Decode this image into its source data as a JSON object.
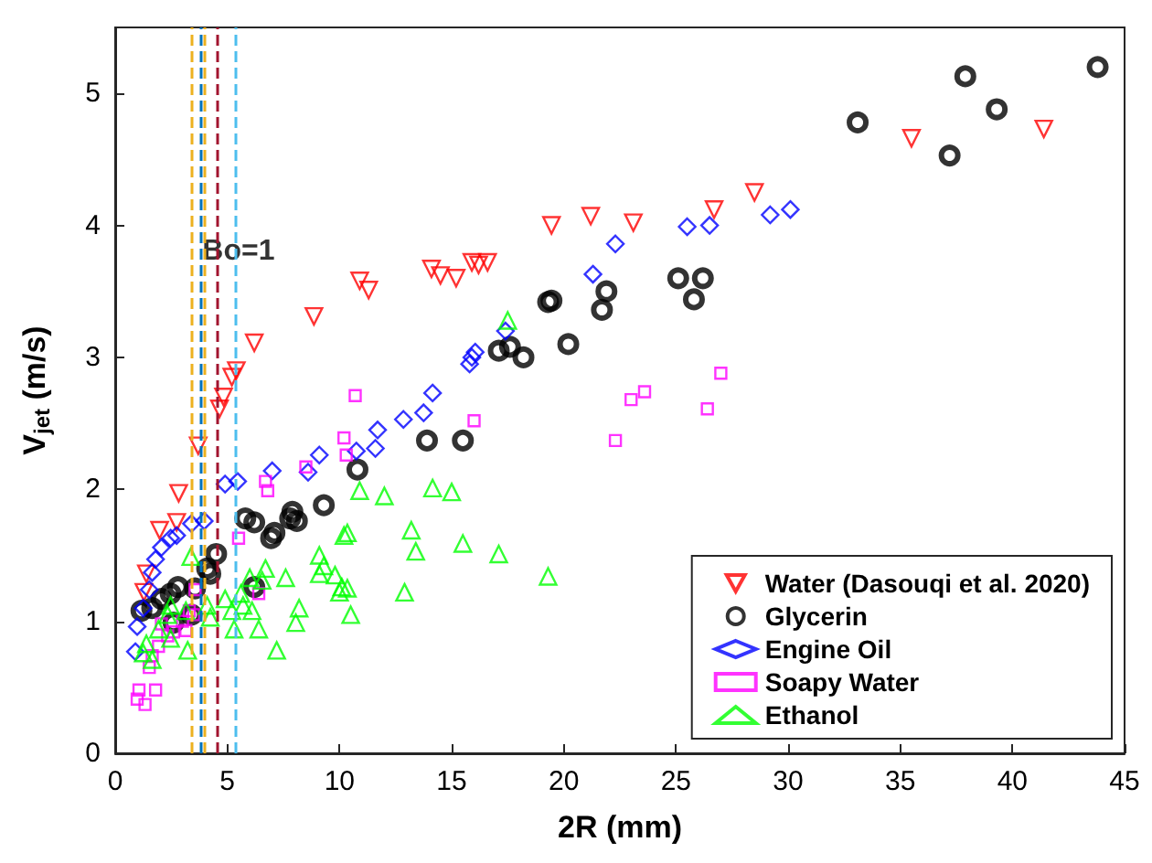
{
  "chart_data": {
    "type": "scatter",
    "xlabel": "2R (mm)",
    "ylabel": "V$_{jet}$ (m/s)",
    "xlim": [
      0,
      45
    ],
    "ylim": [
      0,
      5.5
    ],
    "xticks": [
      0,
      5,
      10,
      15,
      20,
      25,
      30,
      35,
      40,
      45
    ],
    "yticks": [
      0,
      1,
      2,
      3,
      4,
      5
    ],
    "grid": false,
    "legend": "bottom right",
    "annotations": [
      {
        "text": "Bo=1",
        "x": 5.5,
        "y": 3.62
      }
    ],
    "ref_lines": [
      {
        "axis": "x",
        "value": 3.42,
        "color": "#edb120",
        "line_style": "dashed"
      },
      {
        "axis": "x",
        "value": 3.83,
        "color": "#0072bd",
        "line_style": "dashed"
      },
      {
        "axis": "x",
        "value": 3.97,
        "color": "#edb120",
        "line_style": "dashed"
      },
      {
        "axis": "x",
        "value": 4.56,
        "color": "#a2142f",
        "line_style": "dashed"
      },
      {
        "axis": "x",
        "value": 5.38,
        "color": "#4dbeee",
        "line_style": "dashed"
      }
    ],
    "series": [
      {
        "name": "Water (Dasouqi et al. 2020)",
        "color": "#ff0000",
        "marker": "triangle-down",
        "x": [
          10.9,
          11.3,
          8.86,
          6.2,
          5.4,
          5.2,
          4.83,
          4.65,
          3.7,
          2.83,
          2.74,
          1.98,
          1.39,
          1.28,
          14.1,
          14.5,
          15.2,
          15.9,
          16.2,
          16.6,
          19.45,
          21.2,
          23.1,
          26.7,
          28.5,
          35.5,
          41.4
        ],
        "values": [
          3.58,
          3.51,
          3.31,
          3.11,
          2.9,
          2.85,
          2.7,
          2.61,
          2.33,
          1.97,
          1.75,
          1.69,
          1.36,
          1.22,
          3.67,
          3.62,
          3.6,
          3.72,
          3.7,
          3.72,
          4.0,
          4.07,
          4.02,
          4.12,
          4.25,
          4.66,
          4.73
        ]
      },
      {
        "name": "Glycerin",
        "color": "#000000",
        "marker": "circle",
        "x": [
          33.1,
          37.9,
          37.2,
          39.3,
          43.8,
          19.45,
          20.2,
          21.7,
          21.9,
          25.1,
          26.2,
          25.8,
          19.3,
          17.1,
          17.6,
          18.2,
          13.9,
          15.5,
          10.8,
          9.3,
          7.9,
          8.1,
          7.8,
          7.1,
          6.95,
          5.8,
          6.2,
          4.5,
          4.1,
          4.24,
          3.56,
          3.4,
          2.6,
          2.8,
          2.47,
          2.06,
          1.65,
          6.2,
          1.17
        ],
        "values": [
          4.78,
          5.13,
          4.53,
          4.88,
          5.2,
          3.43,
          3.1,
          3.36,
          3.5,
          3.6,
          3.6,
          3.44,
          3.42,
          3.05,
          3.08,
          3.0,
          2.37,
          2.37,
          2.15,
          1.88,
          1.83,
          1.76,
          1.78,
          1.67,
          1.63,
          1.78,
          1.75,
          1.51,
          1.4,
          1.36,
          1.25,
          1.05,
          0.99,
          1.26,
          1.21,
          1.17,
          1.1,
          1.26,
          1.08
        ]
      },
      {
        "name": "Engine Oil",
        "color": "#0000ff",
        "marker": "diamond",
        "x": [
          21.3,
          22.3,
          25.5,
          26.5,
          29.2,
          30.1,
          17.4,
          16.05,
          15.9,
          15.8,
          14.15,
          13.75,
          12.85,
          11.7,
          11.6,
          10.75,
          9.1,
          8.6,
          7.0,
          5.46,
          4.9,
          3.97,
          3.4,
          2.74,
          2.47,
          2.06,
          1.8,
          1.65,
          1.52,
          1.25,
          0.98,
          0.9
        ],
        "values": [
          3.63,
          3.86,
          3.99,
          4.0,
          4.08,
          4.12,
          3.2,
          3.04,
          3.0,
          2.95,
          2.73,
          2.58,
          2.53,
          2.45,
          2.31,
          2.29,
          2.26,
          2.13,
          2.14,
          2.06,
          2.04,
          1.76,
          1.74,
          1.65,
          1.63,
          1.56,
          1.47,
          1.37,
          1.24,
          1.1,
          0.96,
          0.77
        ]
      },
      {
        "name": "Soapy Water",
        "color": "#ff00ff",
        "marker": "square",
        "x": [
          22.3,
          23.0,
          23.6,
          26.4,
          27.0,
          10.7,
          16.0,
          10.2,
          10.3,
          8.5,
          6.7,
          6.8,
          5.5,
          3.56,
          3.3,
          3.5,
          3.0,
          3.15,
          2.6,
          2.06,
          2.34,
          1.93,
          1.65,
          1.52,
          1.06,
          1.8,
          1.33,
          0.98,
          6.4
        ],
        "values": [
          2.37,
          2.68,
          2.74,
          2.61,
          2.88,
          2.71,
          2.52,
          2.39,
          2.26,
          2.17,
          2.06,
          1.99,
          1.63,
          1.24,
          1.08,
          1.05,
          1.0,
          0.93,
          0.92,
          0.98,
          0.89,
          0.81,
          0.74,
          0.65,
          0.48,
          0.48,
          0.37,
          0.41,
          1.21
        ]
      },
      {
        "name": "Ethanol",
        "color": "#00ff00",
        "marker": "triangle",
        "x": [
          17.5,
          10.9,
          12.0,
          14.15,
          15.0,
          13.2,
          13.4,
          15.5,
          17.1,
          19.3,
          12.9,
          10.35,
          10.35,
          10.5,
          10.2,
          9.1,
          9.3,
          9.1,
          9.8,
          10.1,
          10.0,
          8.05,
          8.2,
          7.6,
          7.2,
          6.7,
          6.55,
          6.0,
          5.6,
          5.7,
          6.1,
          6.4,
          4.9,
          5.2,
          5.3,
          4.1,
          4.24,
          3.37,
          3.15,
          3.23,
          2.47,
          2.34,
          2.47,
          1.93,
          1.39,
          1.65,
          1.25
        ],
        "values": [
          3.28,
          1.99,
          1.95,
          2.01,
          1.98,
          1.69,
          1.53,
          1.59,
          1.51,
          1.34,
          1.22,
          1.67,
          1.25,
          1.05,
          1.65,
          1.5,
          1.42,
          1.36,
          1.35,
          1.26,
          1.22,
          0.99,
          1.1,
          1.33,
          0.78,
          1.4,
          1.31,
          1.33,
          1.21,
          1.12,
          1.08,
          0.94,
          1.17,
          1.08,
          0.94,
          1.12,
          1.03,
          1.49,
          1.08,
          0.78,
          1.12,
          1.05,
          0.87,
          0.94,
          0.83,
          0.71,
          0.76
        ]
      }
    ]
  }
}
